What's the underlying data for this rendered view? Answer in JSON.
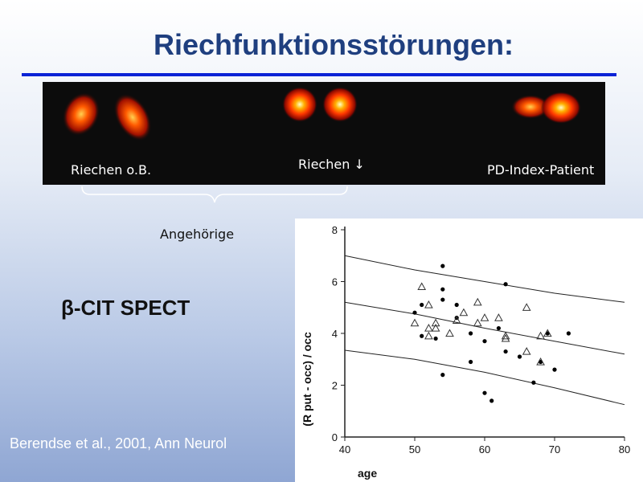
{
  "slide": {
    "title": "Riechfunktionsstörungen:",
    "label_normal": "Riechen o.B.",
    "label_reduced": "Riechen ↓",
    "label_patient": "PD-Index-Patient",
    "relatives_label": "Angehörige",
    "method_label": "β-CIT SPECT",
    "citation": "Berendse et al., 2001, Ann Neurol"
  },
  "colors": {
    "title": "#1f3f7f",
    "rule": "#0a23d6",
    "strip_bg": "#0c0c0c"
  },
  "chart_data": {
    "type": "scatter",
    "xlabel": "age",
    "ylabel": "(R put - occ) / occ",
    "xlim": [
      40,
      80
    ],
    "ylim": [
      0,
      8
    ],
    "xticks": [
      40,
      50,
      60,
      70,
      80
    ],
    "yticks": [
      0,
      2,
      4,
      6,
      8
    ],
    "series": [
      {
        "marker": "filled-circle",
        "points": [
          [
            50,
            4.8
          ],
          [
            51,
            5.1
          ],
          [
            51,
            3.9
          ],
          [
            53,
            3.8
          ],
          [
            54,
            6.6
          ],
          [
            54,
            5.7
          ],
          [
            54,
            5.3
          ],
          [
            54,
            2.4
          ],
          [
            56,
            5.1
          ],
          [
            56,
            4.6
          ],
          [
            58,
            4.0
          ],
          [
            58,
            2.9
          ],
          [
            60,
            3.7
          ],
          [
            60,
            1.7
          ],
          [
            61,
            1.4
          ],
          [
            62,
            4.2
          ],
          [
            63,
            5.9
          ],
          [
            63,
            3.3
          ],
          [
            65,
            3.1
          ],
          [
            67,
            2.1
          ],
          [
            68,
            2.9
          ],
          [
            69,
            4.0
          ],
          [
            70,
            2.6
          ],
          [
            72,
            4.0
          ]
        ]
      },
      {
        "marker": "open-triangle",
        "points": [
          [
            50,
            4.4
          ],
          [
            51,
            5.8
          ],
          [
            52,
            5.1
          ],
          [
            52,
            4.2
          ],
          [
            52,
            3.9
          ],
          [
            53,
            4.4
          ],
          [
            53,
            4.2
          ],
          [
            55,
            4.0
          ],
          [
            56,
            4.5
          ],
          [
            57,
            4.8
          ],
          [
            59,
            5.2
          ],
          [
            59,
            4.4
          ],
          [
            60,
            4.6
          ],
          [
            62,
            4.6
          ],
          [
            63,
            3.9
          ],
          [
            63,
            3.8
          ],
          [
            66,
            5.0
          ],
          [
            66,
            3.3
          ],
          [
            68,
            3.9
          ],
          [
            68,
            2.9
          ],
          [
            69,
            4.0
          ]
        ]
      }
    ],
    "lines": [
      {
        "name": "upper",
        "points": [
          [
            40,
            7.0
          ],
          [
            50,
            6.45
          ],
          [
            60,
            6.0
          ],
          [
            70,
            5.55
          ],
          [
            80,
            5.2
          ]
        ]
      },
      {
        "name": "regression",
        "points": [
          [
            40,
            5.2
          ],
          [
            50,
            4.75
          ],
          [
            60,
            4.2
          ],
          [
            70,
            3.7
          ],
          [
            80,
            3.2
          ]
        ]
      },
      {
        "name": "lower",
        "points": [
          [
            40,
            3.35
          ],
          [
            50,
            3.0
          ],
          [
            60,
            2.5
          ],
          [
            70,
            1.9
          ],
          [
            80,
            1.25
          ]
        ]
      }
    ]
  }
}
